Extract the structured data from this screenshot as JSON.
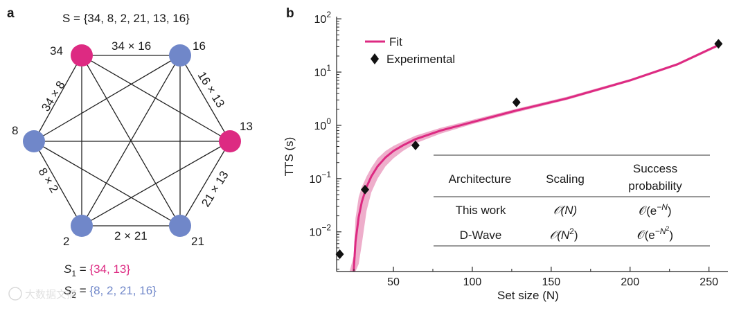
{
  "panel_a": {
    "letter": "a",
    "set_label": "S = {34, 8, 2, 21, 13, 16}",
    "nodes": [
      {
        "label": "34",
        "color": "#dd2a82"
      },
      {
        "label": "16",
        "color": "#7087c9"
      },
      {
        "label": "13",
        "color": "#dd2a82"
      },
      {
        "label": "21",
        "color": "#7087c9"
      },
      {
        "label": "2",
        "color": "#7087c9"
      },
      {
        "label": "8",
        "color": "#7087c9"
      }
    ],
    "edge_labels": [
      "34 × 16",
      "34 × 8",
      "16 × 13",
      "8 × 2",
      "21 × 13",
      "2 × 21"
    ],
    "subset1": {
      "name": "S",
      "sub": "1",
      "eq": " = ",
      "values": "{34, 13}",
      "color": "#dd2a82"
    },
    "subset2": {
      "name": "S",
      "sub": "2",
      "eq": " = ",
      "values": "{8, 2, 21, 16}",
      "color": "#7087c9"
    }
  },
  "panel_b": {
    "letter": "b",
    "legend": {
      "fit": "Fit",
      "experimental": "Experimental",
      "placement": "top-left"
    },
    "table": {
      "headers": [
        "Architecture",
        "Scaling",
        "Success",
        "probability"
      ],
      "rows": [
        {
          "arch": "This work",
          "scaling": "𝒪(N)",
          "prob_base": "𝒪(e",
          "prob_exp": "−N",
          "prob_close": ")"
        },
        {
          "arch": "D-Wave",
          "scaling_base": "𝒪(N",
          "scaling_exp": "2",
          "scaling_close": ")",
          "prob_base": "𝒪(e",
          "prob_exp": "−N",
          "prob_exp2": "2",
          "prob_close": ")"
        }
      ]
    }
  },
  "watermark": "大数据文摘",
  "colors": {
    "fit": "#dd2a82",
    "band": "#eeaecb",
    "node_pink": "#dd2a82",
    "node_blue": "#7087c9"
  },
  "chart_data": {
    "type": "scatter",
    "xlabel": "Set size (N)",
    "ylabel": "TTS (s)",
    "xscale": "linear",
    "yscale": "log",
    "xlim": [
      14,
      262
    ],
    "ylim": [
      0.0018,
      110
    ],
    "xticks": [
      50,
      100,
      150,
      200,
      250
    ],
    "yticks": [
      0.01,
      0.1,
      1,
      10,
      100
    ],
    "grid": false,
    "series": [
      {
        "name": "Experimental",
        "marker": "diamond",
        "x": [
          16,
          32,
          64,
          128,
          256
        ],
        "y": [
          0.0038,
          0.062,
          0.42,
          2.7,
          34
        ]
      },
      {
        "name": "Fit",
        "kind": "line",
        "x": [
          24.8,
          26,
          28,
          30,
          33,
          36,
          40,
          45,
          50,
          56,
          64,
          80,
          100,
          128,
          160,
          200,
          230,
          256
        ],
        "y": [
          0.0018,
          0.0065,
          0.019,
          0.037,
          0.07,
          0.11,
          0.17,
          0.25,
          0.33,
          0.42,
          0.55,
          0.8,
          1.15,
          1.9,
          3.2,
          7.0,
          14,
          32
        ],
        "band_lower": [
          null,
          0.0018,
          0.0025,
          0.006,
          0.025,
          0.055,
          0.1,
          0.17,
          0.24,
          0.33,
          0.46,
          0.7,
          1.05,
          1.75,
          3.0,
          6.6,
          13.2,
          30
        ],
        "band_upper": [
          0.0035,
          0.018,
          0.045,
          0.07,
          0.11,
          0.16,
          0.24,
          0.33,
          0.41,
          0.5,
          0.64,
          0.9,
          1.27,
          2.05,
          3.45,
          7.4,
          14.8,
          34
        ]
      }
    ]
  }
}
